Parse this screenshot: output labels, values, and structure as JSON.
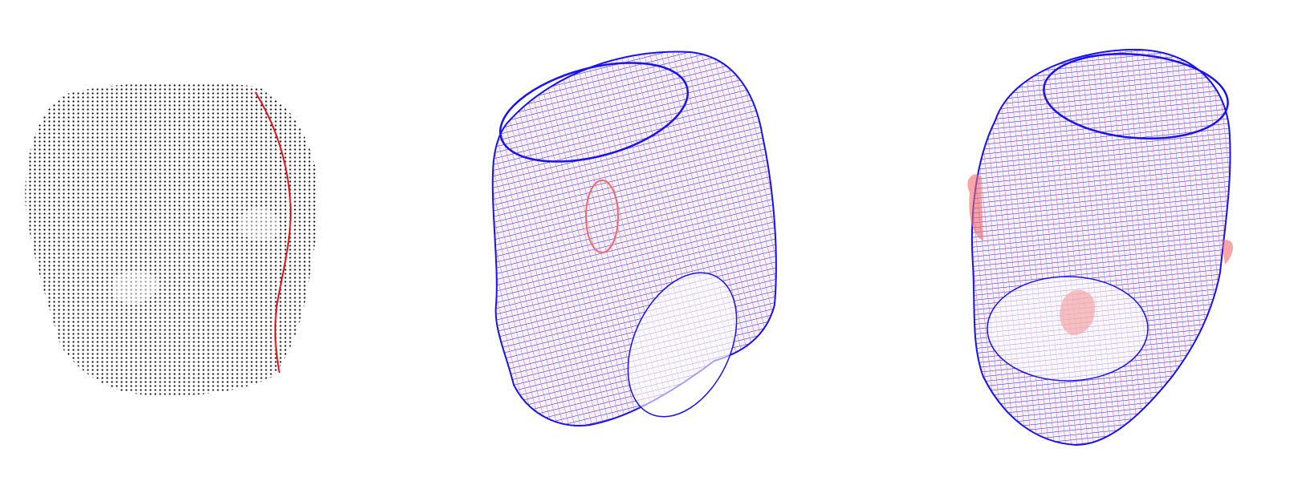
{
  "figure": {
    "panels": [
      {
        "id": "point-cloud",
        "point_color": "#000000",
        "curve_color": "#e8121b"
      },
      {
        "id": "mesh-side",
        "line_colors": [
          "#1a12f0",
          "#f06a6a"
        ]
      },
      {
        "id": "mesh-bottom",
        "line_colors": [
          "#1a12f0",
          "#f06a6a"
        ]
      }
    ]
  }
}
